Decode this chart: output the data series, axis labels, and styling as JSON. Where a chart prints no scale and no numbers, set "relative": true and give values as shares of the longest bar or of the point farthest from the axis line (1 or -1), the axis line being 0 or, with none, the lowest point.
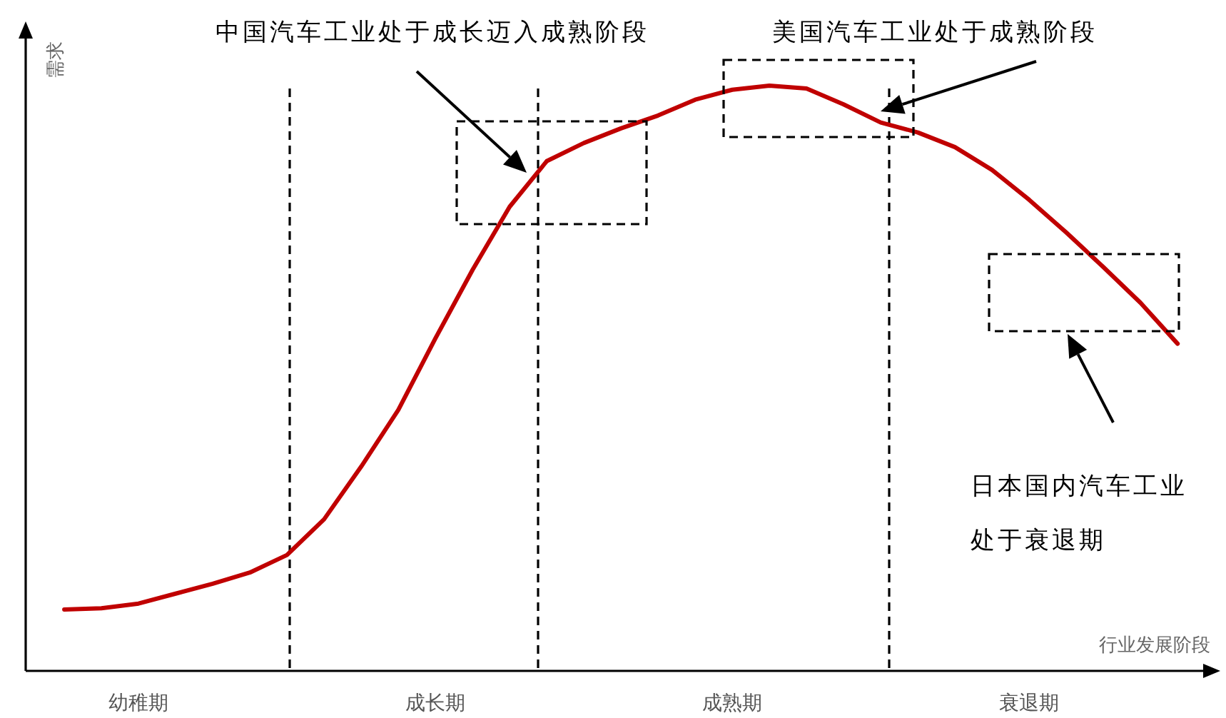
{
  "chart_data": {
    "type": "line",
    "relative": true,
    "xlabel": "行业发展阶段",
    "ylabel": "需求",
    "categories": [
      null,
      null,
      "幼稚期",
      null,
      null,
      null,
      null,
      null,
      null,
      null,
      "成长期",
      null,
      null,
      null,
      null,
      null,
      null,
      null,
      "成熟期",
      null,
      null,
      null,
      null,
      null,
      null,
      null,
      "衰退期",
      null,
      null,
      null,
      null
    ],
    "series": [
      {
        "color": "#c00000",
        "values": [
          0.105,
          0.107,
          0.115,
          0.132,
          0.149,
          0.168,
          0.198,
          0.259,
          0.349,
          0.446,
          0.568,
          0.685,
          0.793,
          0.871,
          0.902,
          0.927,
          0.949,
          0.976,
          0.993,
          1.0,
          0.995,
          0.968,
          0.937,
          0.92,
          0.895,
          0.856,
          0.805,
          0.749,
          0.69,
          0.629,
          0.559
        ]
      }
    ],
    "tick_labels": "x",
    "annotations": [
      "中国汽车工业处于成长迈入成熟阶段",
      "美国汽车工业处于成熟阶段",
      "日本国内汽车工业处于衰退期"
    ]
  }
}
